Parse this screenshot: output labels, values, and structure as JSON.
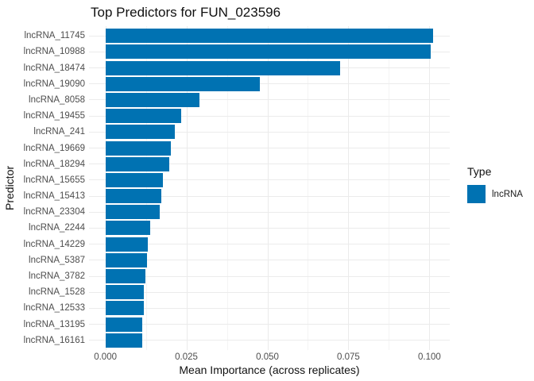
{
  "chart_data": {
    "type": "bar",
    "orientation": "horizontal",
    "title": "Top Predictors for FUN_023596",
    "xlabel": "Mean Importance (across replicates)",
    "ylabel": "Predictor",
    "categories": [
      "lncRNA_11745",
      "lncRNA_10988",
      "lncRNA_18474",
      "lncRNA_19090",
      "lncRNA_8058",
      "lncRNA_19455",
      "lncRNA_241",
      "lncRNA_19669",
      "lncRNA_18294",
      "lncRNA_15655",
      "lncRNA_15413",
      "lncRNA_23304",
      "lncRNA_2244",
      "lncRNA_14229",
      "lncRNA_5387",
      "lncRNA_3782",
      "lncRNA_1528",
      "lncRNA_12533",
      "lncRNA_13195",
      "lncRNA_16161"
    ],
    "values": [
      0.1012,
      0.1004,
      0.0725,
      0.0477,
      0.029,
      0.0233,
      0.0214,
      0.0202,
      0.0198,
      0.0177,
      0.0172,
      0.0167,
      0.0138,
      0.0132,
      0.0128,
      0.0123,
      0.0118,
      0.0118,
      0.0115,
      0.0113
    ],
    "xticks": [
      0,
      0.025,
      0.05,
      0.075,
      0.1
    ],
    "xtick_labels": [
      "0.000",
      "0.025",
      "0.050",
      "0.075",
      "0.100"
    ],
    "xlim": [
      -0.005,
      0.1063
    ],
    "grid": true,
    "bar_color": "#0072B2",
    "grid_major_color": "#ebebeb",
    "grid_minor_color": "#f4f4f4",
    "tick_text_color": "#4d4d4d",
    "legend": {
      "title": "Type",
      "position": "right",
      "items": [
        {
          "label": "lncRNA",
          "color": "#0072B2"
        }
      ]
    }
  }
}
